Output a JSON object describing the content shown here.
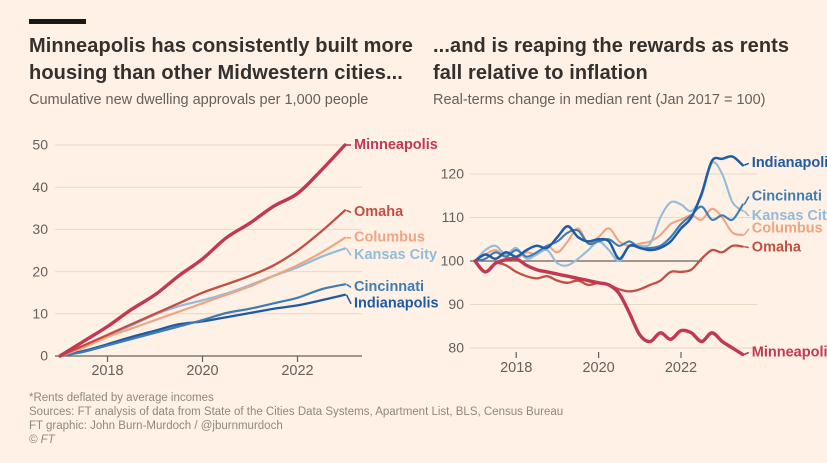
{
  "page": {
    "background_color": "#fff1e5",
    "accent_bar_color": "#1a1817",
    "title_color": "#33302e",
    "subtitle_color": "#66605d",
    "axis_text_color": "#66605d",
    "gridline_color": "#e9d8c5",
    "axis_line_color": "#66605d",
    "footer_color": "#8f887f"
  },
  "chart_data": [
    {
      "type": "line",
      "title": "Minneapolis has consistently built more housing than other Midwestern cities...",
      "title_lines": [
        "Minneapolis has consistently built more",
        "housing than other Midwestern cities..."
      ],
      "subtitle": "Cumulative new dwelling approvals per 1,000 people",
      "xlabel": "",
      "ylabel": "",
      "x": [
        2017,
        2017.5,
        2018,
        2018.5,
        2019,
        2019.5,
        2020,
        2020.5,
        2021,
        2021.5,
        2022,
        2022.5,
        2023
      ],
      "xticks": [
        2018,
        2020,
        2022
      ],
      "yticks": [
        0,
        10,
        20,
        30,
        40,
        50
      ],
      "ylim": [
        0,
        52
      ],
      "grid": true,
      "baseline": null,
      "legend_position": "end-of-line-labels",
      "series": [
        {
          "name": "Minneapolis",
          "color": "#c23751",
          "width": 3.4,
          "z": 6,
          "label_dy": 0,
          "values": [
            0,
            3.5,
            7,
            11,
            14.5,
            19,
            23,
            28,
            31.5,
            35.5,
            38.5,
            44,
            50
          ]
        },
        {
          "name": "Omaha",
          "color": "#c24f44",
          "width": 2.3,
          "z": 5,
          "label_dy": 2,
          "values": [
            0,
            2.5,
            5,
            7.5,
            10,
            12.5,
            15,
            17,
            19,
            21.5,
            25,
            29.5,
            34.5
          ]
        },
        {
          "name": "Columbus",
          "color": "#efa583",
          "width": 2.2,
          "z": 4,
          "label_dy": 0,
          "values": [
            0,
            2,
            4.5,
            6.5,
            8.5,
            10.5,
            12.5,
            14.5,
            16.5,
            19,
            21.5,
            24.5,
            28
          ]
        },
        {
          "name": "Kansas City",
          "color": "#93bcd9",
          "width": 2.2,
          "z": 3,
          "label_dy": 7,
          "values": [
            0,
            2.2,
            4.8,
            7.2,
            9.8,
            11.8,
            13.2,
            14.8,
            16.8,
            19,
            21,
            23.5,
            25.5
          ]
        },
        {
          "name": "Cincinnati",
          "color": "#3e7cb1",
          "width": 2.2,
          "z": 2,
          "label_dy": 3,
          "values": [
            0,
            1,
            2.5,
            4,
            5.5,
            7,
            8.5,
            10.2,
            11.2,
            12.5,
            13.8,
            15.8,
            17
          ]
        },
        {
          "name": "Indianapolis",
          "color": "#1f5ba4",
          "width": 2.3,
          "z": 1,
          "label_dy": 9,
          "values": [
            0,
            1.2,
            2.8,
            4.5,
            6,
            7.5,
            8.2,
            9.2,
            10.2,
            11.2,
            12,
            13.2,
            14.5
          ]
        }
      ]
    },
    {
      "type": "line",
      "title": "...and is reaping the rewards as rents fall relative to inflation",
      "title_lines": [
        "...and is reaping the rewards as rents",
        "fall relative to inflation"
      ],
      "subtitle": "Real-terms change in median rent (Jan 2017 = 100)",
      "xlabel": "",
      "ylabel": "",
      "x": [
        2017,
        2017.25,
        2017.5,
        2017.75,
        2018,
        2018.25,
        2018.5,
        2018.75,
        2019,
        2019.25,
        2019.5,
        2019.75,
        2020,
        2020.25,
        2020.5,
        2020.75,
        2021,
        2021.25,
        2021.5,
        2021.75,
        2022,
        2022.25,
        2022.5,
        2022.75,
        2023,
        2023.25,
        2023.5
      ],
      "xticks": [
        2018,
        2020,
        2022
      ],
      "yticks": [
        80,
        90,
        100,
        110,
        120
      ],
      "ylim": [
        77,
        126
      ],
      "grid": true,
      "baseline": 100,
      "legend_position": "end-of-line-labels",
      "series": [
        {
          "name": "Indianapolis",
          "color": "#1f5ba4",
          "width": 2.5,
          "z": 4,
          "label_dy": -2,
          "values": [
            100,
            101.5,
            100.5,
            102,
            101,
            102.5,
            103.5,
            103,
            105.5,
            108,
            105.5,
            104.5,
            105,
            104.5,
            100.5,
            103.5,
            103,
            102.5,
            103,
            104.5,
            107.5,
            110,
            115.5,
            123,
            123.5,
            124,
            122
          ]
        },
        {
          "name": "Cincinnati",
          "color": "#3e7cb1",
          "width": 2.1,
          "z": 3,
          "label_dy": -8,
          "values": [
            100,
            100.5,
            102,
            101,
            102.5,
            101,
            102,
            103.5,
            104.5,
            106.5,
            107,
            104,
            104.5,
            105,
            103.5,
            104.5,
            103,
            103,
            103.5,
            105.5,
            108.5,
            110.5,
            112.5,
            109.5,
            110.5,
            109.5,
            113
          ]
        },
        {
          "name": "Kansas City",
          "color": "#93bcd9",
          "width": 2.1,
          "z": 2,
          "label_dy": 5,
          "values": [
            100,
            102.5,
            103.5,
            101.5,
            103,
            100.5,
            101.5,
            102.5,
            99.5,
            99,
            100.5,
            102.5,
            104.5,
            102.5,
            100,
            103.5,
            103.5,
            104,
            110,
            113.5,
            113,
            111.5,
            115,
            122.5,
            120,
            113.5,
            111.5
          ]
        },
        {
          "name": "Columbus",
          "color": "#efa583",
          "width": 2.1,
          "z": 1,
          "label_dy": -6,
          "values": [
            100,
            101.5,
            102.5,
            101,
            100.5,
            102,
            101.5,
            103.5,
            102,
            104.5,
            107.5,
            104,
            105.5,
            107.5,
            104.5,
            103.5,
            104,
            104.5,
            106,
            108.5,
            109.5,
            110.5,
            109.5,
            112,
            110,
            106.5,
            106
          ]
        },
        {
          "name": "Omaha",
          "color": "#c24f44",
          "width": 2.3,
          "z": 5,
          "label_dy": 1,
          "values": [
            100,
            97.5,
            99.5,
            99,
            97.5,
            96.5,
            96,
            96.5,
            95.5,
            95,
            95.5,
            94.5,
            95,
            94.5,
            93.5,
            93,
            93.5,
            94.5,
            95.5,
            97.5,
            97.5,
            98,
            100.5,
            102.5,
            102,
            103.5,
            103.3
          ]
        },
        {
          "name": "Minneapolis",
          "color": "#c23751",
          "width": 3.4,
          "z": 6,
          "label_dy": -2,
          "values": [
            100,
            97.5,
            99.5,
            100.3,
            100.5,
            99,
            98,
            97.5,
            97,
            96.5,
            96,
            95.5,
            95,
            94.5,
            92.5,
            88,
            83,
            81.5,
            83.5,
            82,
            84,
            83.5,
            81.5,
            83.5,
            81.5,
            80,
            78.5
          ]
        }
      ]
    }
  ],
  "footer": {
    "note": "*Rents deflated by average incomes",
    "sources": "Sources: FT analysis of data from State of the Cities Data Systems, Apartment List, BLS, Census Bureau",
    "credit": "FT graphic: John Burn-Murdoch / @jburnmurdoch",
    "copyright": "© FT"
  }
}
